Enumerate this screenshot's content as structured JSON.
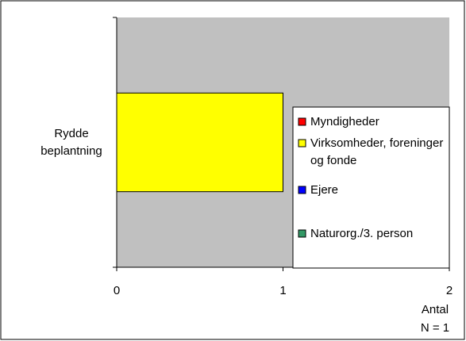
{
  "chart_data": {
    "type": "stacked_barh",
    "categories": [
      "Rydde beplantning"
    ],
    "series": [
      {
        "name": "Myndigheder",
        "color": "#ff0000",
        "values": [
          0
        ]
      },
      {
        "name": "Virksomheder, foreninger og fonde",
        "color": "#ffff00",
        "values": [
          1
        ]
      },
      {
        "name": "Ejere",
        "color": "#0000ff",
        "values": [
          0
        ]
      },
      {
        "name": "Naturorg./3. person",
        "color": "#339966",
        "values": [
          0
        ]
      }
    ],
    "xlim": [
      0,
      2
    ],
    "xticks": [
      0,
      1,
      2
    ],
    "xlabel": "Antal",
    "note": "N = 1",
    "plot_color": "#c0c0c0"
  }
}
